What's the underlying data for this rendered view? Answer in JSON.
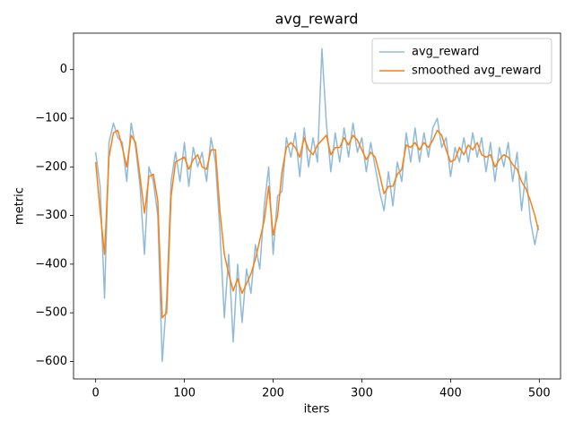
{
  "chart_data": {
    "type": "line",
    "title": "avg_reward",
    "x_label": "iters",
    "y_label": "metric",
    "x": [
      0,
      5,
      10,
      15,
      20,
      25,
      30,
      35,
      40,
      45,
      50,
      55,
      60,
      65,
      70,
      75,
      80,
      85,
      90,
      95,
      100,
      105,
      110,
      115,
      120,
      125,
      130,
      135,
      140,
      145,
      150,
      155,
      160,
      165,
      170,
      175,
      180,
      185,
      190,
      195,
      200,
      205,
      210,
      215,
      220,
      225,
      230,
      235,
      240,
      245,
      250,
      255,
      260,
      265,
      270,
      275,
      280,
      285,
      290,
      295,
      300,
      305,
      310,
      315,
      320,
      325,
      330,
      335,
      340,
      345,
      350,
      355,
      360,
      365,
      370,
      375,
      380,
      385,
      390,
      395,
      400,
      405,
      410,
      415,
      420,
      425,
      430,
      435,
      440,
      445,
      450,
      455,
      460,
      465,
      470,
      475,
      480,
      485,
      490,
      495,
      499
    ],
    "series": [
      {
        "name": "avg_reward",
        "color": "#1f77b4",
        "alpha": 0.5,
        "values": [
          -170,
          -240,
          -470,
          -150,
          -110,
          -140,
          -150,
          -230,
          -110,
          -160,
          -240,
          -380,
          -200,
          -230,
          -300,
          -600,
          -470,
          -230,
          -170,
          -230,
          -150,
          -240,
          -160,
          -200,
          -170,
          -230,
          -140,
          -190,
          -330,
          -510,
          -380,
          -560,
          -400,
          -520,
          -410,
          -460,
          -360,
          -410,
          -280,
          -200,
          -380,
          -260,
          -250,
          -140,
          -180,
          -130,
          -220,
          -120,
          -200,
          -140,
          -190,
          43,
          -110,
          -210,
          -130,
          -190,
          -120,
          -180,
          -110,
          -170,
          -140,
          -210,
          -150,
          -200,
          -250,
          -290,
          -210,
          -280,
          -190,
          -230,
          -130,
          -190,
          -120,
          -190,
          -130,
          -180,
          -120,
          -100,
          -160,
          -140,
          -220,
          -160,
          -190,
          -140,
          -190,
          -130,
          -180,
          -140,
          -210,
          -150,
          -230,
          -160,
          -200,
          -150,
          -230,
          -170,
          -290,
          -210,
          -310,
          -360,
          -320
        ]
      },
      {
        "name": "smoothed avg_reward",
        "color": "#ff7f0e",
        "alpha": 1,
        "values": [
          -190,
          -290,
          -380,
          -180,
          -130,
          -125,
          -160,
          -200,
          -135,
          -150,
          -220,
          -295,
          -220,
          -215,
          -270,
          -510,
          -500,
          -260,
          -190,
          -185,
          -180,
          -205,
          -185,
          -175,
          -200,
          -205,
          -165,
          -165,
          -290,
          -380,
          -420,
          -455,
          -430,
          -460,
          -440,
          -420,
          -390,
          -350,
          -310,
          -240,
          -340,
          -300,
          -210,
          -160,
          -150,
          -160,
          -180,
          -140,
          -165,
          -175,
          -155,
          -145,
          -135,
          -175,
          -160,
          -160,
          -140,
          -155,
          -135,
          -145,
          -165,
          -185,
          -170,
          -180,
          -215,
          -255,
          -240,
          -240,
          -215,
          -205,
          -155,
          -160,
          -150,
          -165,
          -150,
          -160,
          -145,
          -125,
          -135,
          -165,
          -190,
          -185,
          -160,
          -175,
          -155,
          -165,
          -150,
          -175,
          -180,
          -175,
          -200,
          -185,
          -175,
          -180,
          -195,
          -205,
          -230,
          -245,
          -270,
          -300,
          -330
        ]
      }
    ],
    "xlim": [
      -24.95,
      523.95
    ],
    "ylim": [
      -636,
      75
    ],
    "xticks": [
      0,
      100,
      200,
      300,
      400,
      500
    ],
    "yticks": [
      {
        "value": -600,
        "label": "−600"
      },
      {
        "value": -500,
        "label": "−500"
      },
      {
        "value": -400,
        "label": "−400"
      },
      {
        "value": -300,
        "label": "−300"
      },
      {
        "value": -200,
        "label": "−200"
      },
      {
        "value": -100,
        "label": "−100"
      },
      0
    ],
    "legend": "upper right",
    "grid": false
  }
}
